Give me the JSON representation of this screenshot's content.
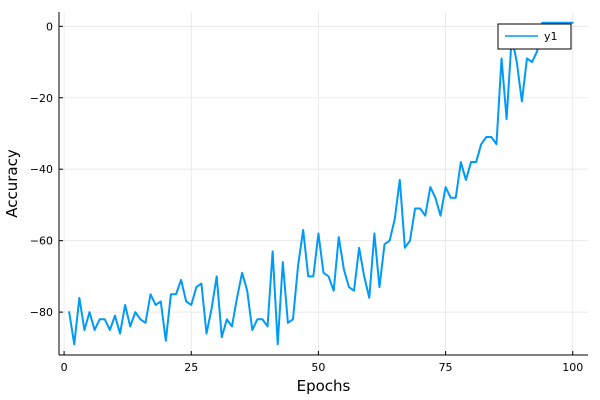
{
  "chart_data": {
    "type": "line",
    "title": "",
    "xlabel": "Epochs",
    "ylabel": "Accuracy",
    "xlim": [
      -1,
      103
    ],
    "ylim": [
      -92,
      4
    ],
    "xticks": [
      0,
      25,
      50,
      75,
      100
    ],
    "yticks": [
      0,
      -20,
      -40,
      -60,
      -80
    ],
    "xtick_labels": [
      "0",
      "25",
      "50",
      "75",
      "100"
    ],
    "ytick_labels": [
      "0",
      "−20",
      "−40",
      "−60",
      "−80"
    ],
    "grid": true,
    "legend": {
      "position": "top-right",
      "entries": [
        "y1"
      ]
    },
    "colors": {
      "series": "#009af9",
      "axis": "#000000",
      "grid": "#e5e5e5",
      "legend_border": "#000000"
    },
    "series": [
      {
        "name": "y1",
        "x": [
          1,
          2,
          3,
          4,
          5,
          6,
          7,
          8,
          9,
          10,
          11,
          12,
          13,
          14,
          15,
          16,
          17,
          18,
          19,
          20,
          21,
          22,
          23,
          24,
          25,
          26,
          27,
          28,
          29,
          30,
          31,
          32,
          33,
          34,
          35,
          36,
          37,
          38,
          39,
          40,
          41,
          42,
          43,
          44,
          45,
          46,
          47,
          48,
          49,
          50,
          51,
          52,
          53,
          54,
          55,
          56,
          57,
          58,
          59,
          60,
          61,
          62,
          63,
          64,
          65,
          66,
          67,
          68,
          69,
          70,
          71,
          72,
          73,
          74,
          75,
          76,
          77,
          78,
          79,
          80,
          81,
          82,
          83,
          84,
          85,
          86,
          87,
          88,
          89,
          90,
          91,
          92,
          93,
          94,
          95,
          96,
          97,
          98,
          99,
          100
        ],
        "values": [
          -80,
          -89,
          -76,
          -85,
          -80,
          -85,
          -82,
          -82,
          -85,
          -81,
          -86,
          -78,
          -84,
          -80,
          -82,
          -83,
          -75,
          -78,
          -77,
          -88,
          -75,
          -75,
          -71,
          -77,
          -78,
          -73,
          -72,
          -86,
          -79,
          -70,
          -87,
          -82,
          -84,
          -76,
          -69,
          -74,
          -85,
          -82,
          -82,
          -84,
          -63,
          -89,
          -66,
          -83,
          -82,
          -67,
          -57,
          -70,
          -70,
          -58,
          -69,
          -70,
          -74,
          -59,
          -68,
          -73,
          -74,
          -62,
          -70,
          -76,
          -58,
          -73,
          -61,
          -60,
          -54,
          -43,
          -62,
          -60,
          -51,
          -51,
          -53,
          -45,
          -48,
          -53,
          -45,
          -48,
          -48,
          -38,
          -43,
          -38,
          -38,
          -33,
          -31,
          -31,
          -33,
          -9,
          -26,
          -3,
          -10,
          -21,
          -9,
          -10,
          -7,
          1,
          1,
          1,
          1,
          1,
          1,
          1
        ]
      }
    ]
  }
}
